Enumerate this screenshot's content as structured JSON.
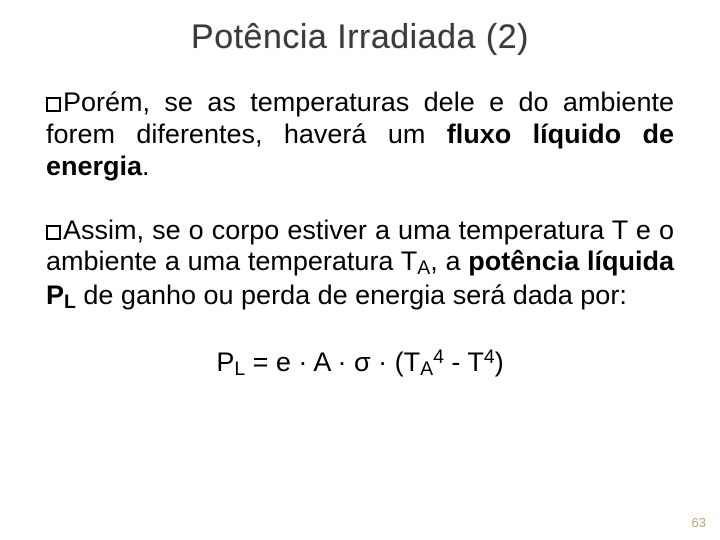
{
  "background_color": "#ffffff",
  "title": {
    "text": "Potência Irradiada (2)",
    "fontsize": 34,
    "color": "#3a3a3a"
  },
  "paragraphs": [
    {
      "prefix": "Porém,",
      "rest": " se as temperaturas dele e do ambiente forem diferentes, haverá um ",
      "bold_tail": "fluxo líquido de energia",
      "after_bold": "."
    },
    {
      "prefix": "Assim,",
      "rest": " se o corpo estiver a uma temperatura T e o ambiente a uma temperatura T",
      "sub1": "A",
      "rest2": ", a ",
      "bold_mid": "potência líquida P",
      "bold_sub": "L",
      "rest3": " de ganho ou perda de energia será dada por:"
    }
  ],
  "formula": {
    "p": "P",
    "psub": "L",
    "mid": " = e · A · σ · (T",
    "tasub": "A",
    "tasuper": "4",
    "dash": " - T",
    "tsuper": "4",
    "close": ")"
  },
  "page_number": "63",
  "body_fontsize": 27,
  "pagenum_color": "#b8a97a"
}
